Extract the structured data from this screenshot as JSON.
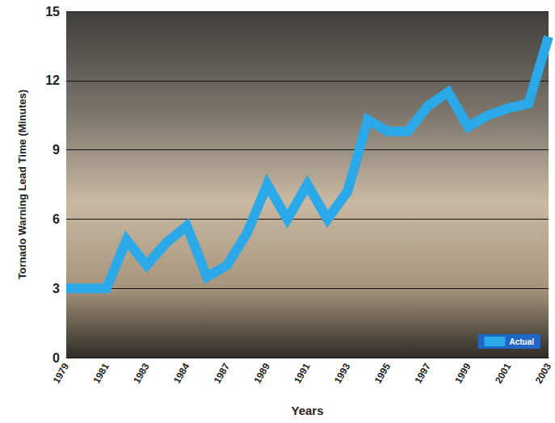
{
  "chart_data": {
    "type": "line",
    "x_label": "Years",
    "y_label": "Tornado Warning Lead Time (Minutes)",
    "categories": [
      "1979",
      null,
      "1981",
      null,
      "1983",
      null,
      "1984",
      null,
      "1987",
      null,
      "1989",
      null,
      "1991",
      null,
      "1993",
      null,
      "1995",
      null,
      "1997",
      null,
      "1999",
      null,
      "2001",
      null,
      "2003"
    ],
    "series": [
      {
        "name": "Actual",
        "color": "#2aa8e8",
        "values": [
          3.0,
          3.0,
          3.0,
          5.1,
          4.0,
          5.0,
          5.7,
          3.5,
          4.0,
          5.4,
          7.5,
          6.0,
          7.5,
          6.0,
          7.2,
          10.3,
          9.8,
          9.8,
          10.9,
          11.5,
          10.0,
          10.5,
          10.8,
          11.0,
          13.9
        ]
      }
    ],
    "ylim": [
      0,
      15
    ],
    "yticks": [
      0,
      3,
      6,
      9,
      12,
      15
    ],
    "grid": true,
    "legend": "lower right"
  }
}
